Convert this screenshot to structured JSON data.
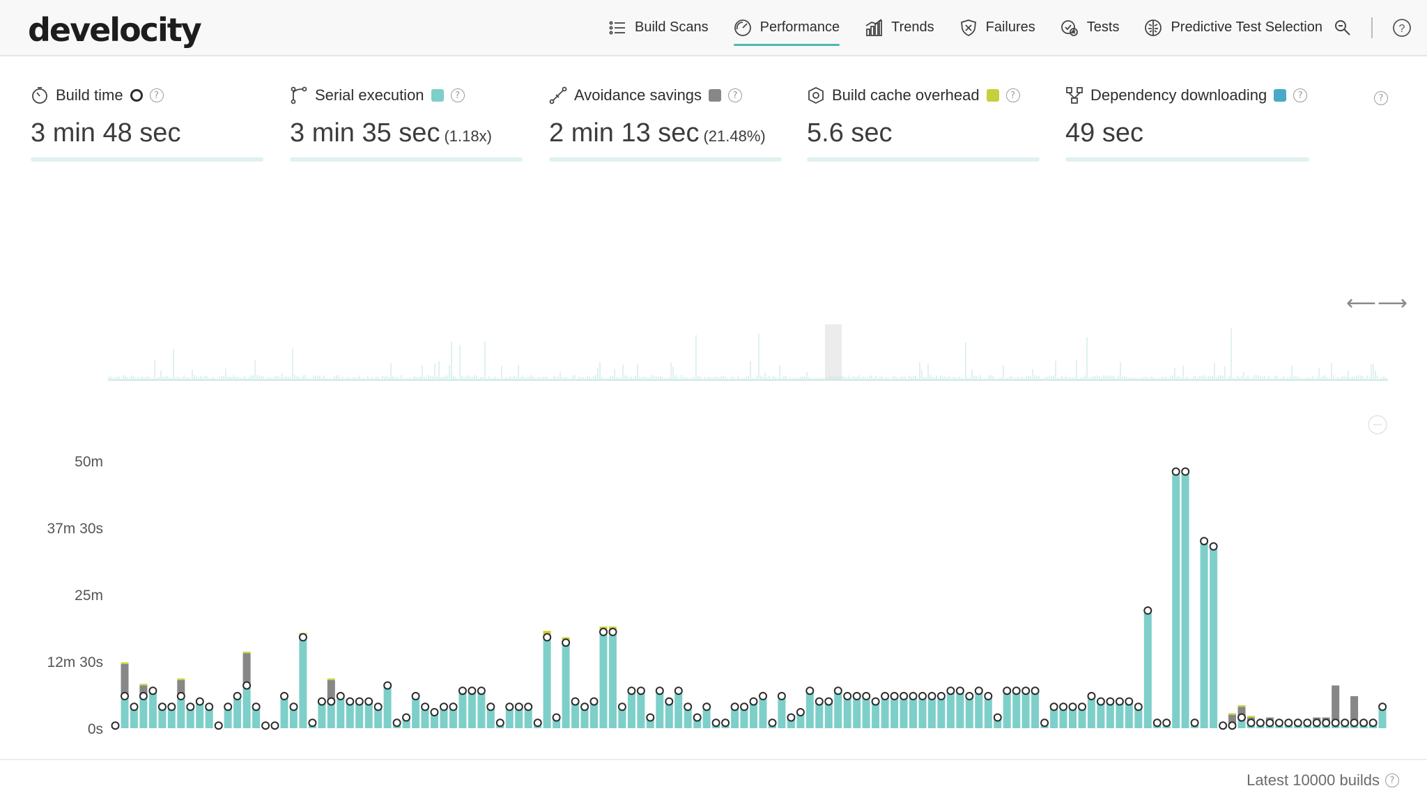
{
  "app": {
    "logo_text": "develocity"
  },
  "nav": {
    "items": [
      {
        "label": "Build Scans",
        "icon": "list-icon",
        "active": false
      },
      {
        "label": "Performance",
        "icon": "gauge-icon",
        "active": true
      },
      {
        "label": "Trends",
        "icon": "bar-chart-icon",
        "active": false
      },
      {
        "label": "Failures",
        "icon": "shield-x-icon",
        "active": false
      },
      {
        "label": "Tests",
        "icon": "tests-icon",
        "active": false
      },
      {
        "label": "Predictive Test Selection",
        "icon": "brain-icon",
        "active": false
      }
    ],
    "help_glyph": "?"
  },
  "metrics": [
    {
      "label": "Build time",
      "value": "3 min 48 sec",
      "sub": "",
      "legend": "ring",
      "color": "#2b2b2b"
    },
    {
      "label": "Serial execution",
      "value": "3 min 35 sec",
      "sub": "(1.18x)",
      "legend": "swatch",
      "color": "#7ecfc9"
    },
    {
      "label": "Avoidance savings",
      "value": "2 min 13 sec",
      "sub": "(21.48%)",
      "legend": "swatch",
      "color": "#878787"
    },
    {
      "label": "Build cache overhead",
      "value": "5.6 sec",
      "sub": "",
      "legend": "swatch",
      "color": "#c8cf3c"
    },
    {
      "label": "Dependency downloading",
      "value": "49 sec",
      "sub": "",
      "legend": "swatch",
      "color": "#4aa9c9"
    }
  ],
  "chart_data": {
    "type": "bar",
    "stacked": true,
    "y_tick_labels": [
      "0s",
      "12m 30s",
      "25m",
      "37m 30s",
      "50m"
    ],
    "ylim": [
      0,
      50
    ],
    "y_unit": "minutes",
    "grid": false,
    "series": [
      {
        "name": "Serial execution",
        "color": "#7ecfc9",
        "values": [
          0.5,
          6,
          4,
          6,
          7,
          4,
          4,
          6,
          4,
          5,
          4,
          0.5,
          4,
          6,
          8,
          4,
          0.5,
          0.5,
          6,
          4,
          17,
          1,
          5,
          5,
          6,
          5,
          5,
          5,
          4,
          8,
          1,
          2,
          6,
          4,
          3,
          4,
          4,
          7,
          7,
          7,
          4,
          1,
          4,
          4,
          4,
          1,
          17,
          2,
          16,
          5,
          4,
          5,
          18,
          18,
          4,
          7,
          7,
          2,
          7,
          5,
          7,
          4,
          2,
          4,
          1,
          1,
          4,
          4,
          5,
          6,
          1,
          6,
          2,
          3,
          7,
          5,
          5,
          7,
          6,
          6,
          6,
          5,
          6,
          6,
          6,
          6,
          6,
          6,
          6,
          7,
          7,
          6,
          7,
          6,
          2,
          7,
          7,
          7,
          7,
          1,
          4,
          4,
          4,
          4,
          6,
          5,
          5,
          5,
          5,
          4,
          22,
          1,
          1,
          48,
          48,
          1,
          35,
          34,
          0.5,
          0.5,
          2,
          1,
          1,
          1,
          1,
          1,
          1,
          1,
          1,
          1,
          1,
          1,
          1,
          1,
          1,
          4
        ],
        "x_index": "build"
      },
      {
        "name": "Avoidance savings",
        "color": "#878787",
        "values": [
          0,
          6,
          0,
          2,
          0,
          0,
          0,
          3,
          0,
          0,
          0,
          0,
          0,
          0,
          6,
          0,
          0,
          0,
          0,
          0,
          0,
          0,
          0,
          4,
          0,
          0,
          0,
          0,
          0,
          0,
          0,
          0,
          0,
          0,
          0,
          0,
          0,
          0,
          0,
          0,
          0,
          0,
          0,
          0,
          0,
          0,
          0,
          0,
          0,
          0,
          0,
          0,
          0,
          0,
          0,
          0,
          0,
          0,
          0,
          0,
          0,
          0,
          0,
          0,
          0,
          0,
          0,
          0,
          0,
          0,
          0,
          0,
          0,
          0,
          0,
          0,
          0,
          0,
          0,
          0,
          0,
          0,
          0,
          0,
          0,
          0,
          0,
          0,
          0,
          0,
          0,
          0,
          0,
          0,
          0,
          0,
          0,
          0,
          0,
          0,
          0,
          0,
          0,
          0,
          0,
          0,
          0,
          0,
          0,
          0,
          0,
          0,
          0,
          0,
          0,
          0,
          0,
          0,
          0,
          2,
          2,
          1,
          0,
          1,
          0,
          0,
          0,
          0,
          1,
          1,
          7,
          0,
          5,
          0
        ],
        "x_index": "build"
      },
      {
        "name": "Build cache overhead",
        "color": "#c8cf3c",
        "values": [
          0,
          0.3,
          0,
          0.3,
          0,
          0,
          0,
          0.3,
          0,
          0,
          0,
          0,
          0,
          0,
          0.3,
          0,
          0,
          0,
          0,
          0,
          0.8,
          0,
          0,
          0.3,
          0,
          0,
          0,
          0,
          0,
          0,
          0,
          0,
          0,
          0,
          0,
          0,
          0,
          0,
          0.3,
          0.3,
          0,
          0,
          0.3,
          0,
          0,
          0,
          1.2,
          0,
          1,
          0,
          0,
          0,
          1,
          1,
          0,
          0.3,
          0,
          0,
          0,
          0,
          0,
          0,
          0,
          0,
          0,
          0,
          0,
          0,
          0,
          0,
          0,
          0,
          0,
          0,
          0,
          0,
          0,
          0,
          0,
          0,
          0,
          0,
          0,
          0,
          0,
          0,
          0,
          0,
          0,
          0,
          0,
          0,
          0,
          0,
          0,
          0,
          0,
          0,
          0,
          0,
          0,
          0,
          0,
          0,
          0,
          0,
          0,
          0,
          0,
          0,
          0,
          0,
          0,
          0,
          0,
          0,
          0,
          0,
          0,
          0.3,
          0.3,
          0.3,
          0,
          0,
          0,
          0,
          0,
          0,
          0,
          0,
          0,
          0,
          0,
          0
        ],
        "x_index": "build"
      }
    ],
    "build_time_markers": "ring"
  },
  "arrows_glyph": "⟵⟶",
  "footer": {
    "text": "Latest 10000 builds"
  }
}
